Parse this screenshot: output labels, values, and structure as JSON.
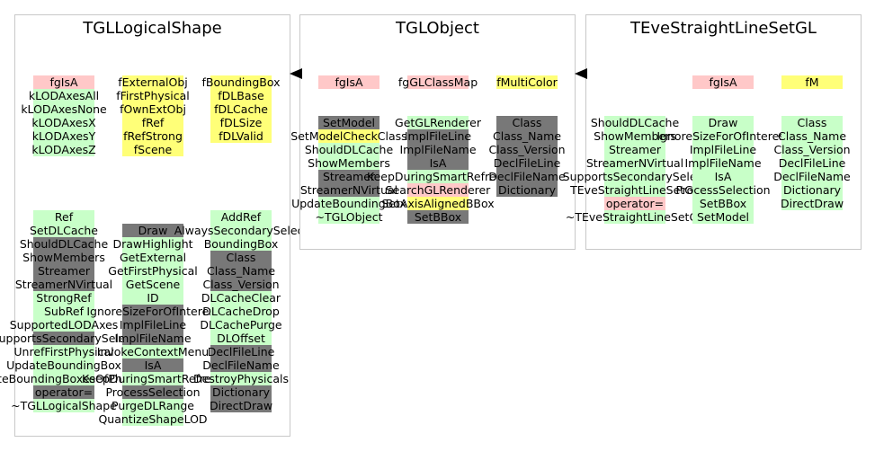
{
  "colors": {
    "pink": "#ffc8c8",
    "yellow": "#ffff78",
    "green": "#c8ffc8",
    "gray": "#787878",
    "white": "#ffffff",
    "border": "#c8c8c8"
  },
  "diagram": {
    "boxes": [
      {
        "id": "tgllogicalshape",
        "title": "TGLLogicalShape",
        "columns": [
          [
            {
              "text": "fgIsA",
              "c": "pink",
              "g": 0
            },
            {
              "text": "kLODAxesAll",
              "c": "green"
            },
            {
              "text": "kLODAxesNone",
              "c": "green"
            },
            {
              "text": "kLODAxesX",
              "c": "green"
            },
            {
              "text": "kLODAxesY",
              "c": "green"
            },
            {
              "text": "kLODAxesZ",
              "c": "green"
            },
            {
              "text": "Ref",
              "c": "green",
              "g": 4
            },
            {
              "text": "SetDLCache",
              "c": "green"
            },
            {
              "text": "ShouldDLCache",
              "c": "gray"
            },
            {
              "text": "ShowMembers",
              "c": "gray"
            },
            {
              "text": "Streamer",
              "c": "gray"
            },
            {
              "text": "StreamerNVirtual",
              "c": "gray"
            },
            {
              "text": "StrongRef",
              "c": "green"
            },
            {
              "text": "SubRef",
              "c": "green"
            },
            {
              "text": "SupportedLODAxes",
              "c": "green"
            },
            {
              "text": "SupportsSecondarySelect",
              "c": "gray"
            },
            {
              "text": "UnrefFirstPhysical",
              "c": "green"
            },
            {
              "text": "UpdateBoundingBox",
              "c": "green"
            },
            {
              "text": "UpdateBoundingBoxesOfPhysicals",
              "c": "green"
            },
            {
              "text": "operator=",
              "c": "gray"
            },
            {
              "text": "~TGLLogicalShape",
              "c": "green"
            }
          ],
          [
            {
              "text": "fExternalObj",
              "c": "yellow",
              "g": 0
            },
            {
              "text": "fFirstPhysical",
              "c": "yellow"
            },
            {
              "text": "fOwnExtObj",
              "c": "yellow"
            },
            {
              "text": "fRef",
              "c": "yellow"
            },
            {
              "text": "fRefStrong",
              "c": "yellow"
            },
            {
              "text": "fScene",
              "c": "yellow"
            },
            {
              "text": "Draw",
              "c": "gray",
              "g": 5
            },
            {
              "text": "DrawHighlight",
              "c": "green"
            },
            {
              "text": "GetExternal",
              "c": "green"
            },
            {
              "text": "GetFirstPhysical",
              "c": "green"
            },
            {
              "text": "GetScene",
              "c": "green"
            },
            {
              "text": "ID",
              "c": "green"
            },
            {
              "text": "IgnoreSizeForOfInterest",
              "c": "gray"
            },
            {
              "text": "ImplFileLine",
              "c": "gray"
            },
            {
              "text": "ImplFileName",
              "c": "gray"
            },
            {
              "text": "InvokeContextMenu",
              "c": "green"
            },
            {
              "text": "IsA",
              "c": "gray"
            },
            {
              "text": "KeepDuringSmartRefresh",
              "c": "green"
            },
            {
              "text": "ProcessSelection",
              "c": "gray"
            },
            {
              "text": "PurgeDLRange",
              "c": "green"
            },
            {
              "text": "QuantizeShapeLOD",
              "c": "green"
            }
          ],
          [
            {
              "text": "fBoundingBox",
              "c": "yellow",
              "g": 0
            },
            {
              "text": "fDLBase",
              "c": "yellow"
            },
            {
              "text": "fDLCache",
              "c": "yellow"
            },
            {
              "text": "fDLSize",
              "c": "yellow"
            },
            {
              "text": "fDLValid",
              "c": "yellow"
            },
            {
              "text": "AddRef",
              "c": "green",
              "g": 5
            },
            {
              "text": "AlwaysSecondarySelect",
              "c": "green"
            },
            {
              "text": "BoundingBox",
              "c": "green"
            },
            {
              "text": "Class",
              "c": "gray"
            },
            {
              "text": "Class_Name",
              "c": "gray"
            },
            {
              "text": "Class_Version",
              "c": "gray"
            },
            {
              "text": "DLCacheClear",
              "c": "green"
            },
            {
              "text": "DLCacheDrop",
              "c": "green"
            },
            {
              "text": "DLCachePurge",
              "c": "green"
            },
            {
              "text": "DLOffset",
              "c": "green"
            },
            {
              "text": "DeclFileLine",
              "c": "gray"
            },
            {
              "text": "DeclFileName",
              "c": "gray"
            },
            {
              "text": "DestroyPhysicals",
              "c": "green"
            },
            {
              "text": "Dictionary",
              "c": "gray"
            },
            {
              "text": "DirectDraw",
              "c": "gray"
            }
          ]
        ]
      },
      {
        "id": "tglobject",
        "title": "TGLObject",
        "columns": [
          [
            {
              "text": "fgIsA",
              "c": "pink",
              "g": 0
            },
            {
              "text": "SetModel",
              "c": "gray",
              "g": 2
            },
            {
              "text": "SetModelCheckClass",
              "c": "yellow"
            },
            {
              "text": "ShouldDLCache",
              "c": "green"
            },
            {
              "text": "ShowMembers",
              "c": "green"
            },
            {
              "text": "Streamer",
              "c": "gray"
            },
            {
              "text": "StreamerNVirtual",
              "c": "gray"
            },
            {
              "text": "UpdateBoundingBox",
              "c": "green"
            },
            {
              "text": "~TGLObject",
              "c": "green"
            }
          ],
          [
            {
              "text": "fgGLClassMap",
              "c": "pink",
              "g": 0
            },
            {
              "text": "GetGLRenderer",
              "c": "green",
              "g": 2
            },
            {
              "text": "ImplFileLine",
              "c": "gray"
            },
            {
              "text": "ImplFileName",
              "c": "gray"
            },
            {
              "text": "IsA",
              "c": "gray"
            },
            {
              "text": "KeepDuringSmartRefresh",
              "c": "green"
            },
            {
              "text": "SearchGLRenderer",
              "c": "pink"
            },
            {
              "text": "SetAxisAlignedBBox",
              "c": "yellow"
            },
            {
              "text": "SetBBox",
              "c": "gray"
            }
          ],
          [
            {
              "text": "fMultiColor",
              "c": "yellow",
              "g": 0
            },
            {
              "text": "Class",
              "c": "gray",
              "g": 2
            },
            {
              "text": "Class_Name",
              "c": "gray"
            },
            {
              "text": "Class_Version",
              "c": "gray"
            },
            {
              "text": "DeclFileLine",
              "c": "gray"
            },
            {
              "text": "DeclFileName",
              "c": "gray"
            },
            {
              "text": "Dictionary",
              "c": "gray"
            }
          ]
        ]
      },
      {
        "id": "tevestraightlinesetgl",
        "title": "TEveStraightLineSetGL",
        "columns": [
          [
            {
              "text": "ShouldDLCache",
              "c": "green",
              "g": 3
            },
            {
              "text": "ShowMembers",
              "c": "green"
            },
            {
              "text": "Streamer",
              "c": "green"
            },
            {
              "text": "StreamerNVirtual",
              "c": "green"
            },
            {
              "text": "SupportsSecondarySelect",
              "c": "green"
            },
            {
              "text": "TEveStraightLineSetGL",
              "c": "green"
            },
            {
              "text": "operator=",
              "c": "pink"
            },
            {
              "text": "~TEveStraightLineSetGL",
              "c": "green"
            }
          ],
          [
            {
              "text": "fgIsA",
              "c": "pink",
              "g": 0
            },
            {
              "text": "Draw",
              "c": "green",
              "g": 2
            },
            {
              "text": "IgnoreSizeForOfInterest",
              "c": "green"
            },
            {
              "text": "ImplFileLine",
              "c": "green"
            },
            {
              "text": "ImplFileName",
              "c": "green"
            },
            {
              "text": "IsA",
              "c": "green"
            },
            {
              "text": "ProcessSelection",
              "c": "green"
            },
            {
              "text": "SetBBox",
              "c": "green"
            },
            {
              "text": "SetModel",
              "c": "green"
            }
          ],
          [
            {
              "text": "fM",
              "c": "yellow",
              "g": 0
            },
            {
              "text": "Class",
              "c": "green",
              "g": 2
            },
            {
              "text": "Class_Name",
              "c": "green"
            },
            {
              "text": "Class_Version",
              "c": "green"
            },
            {
              "text": "DeclFileLine",
              "c": "green"
            },
            {
              "text": "DeclFileName",
              "c": "green"
            },
            {
              "text": "Dictionary",
              "c": "green"
            },
            {
              "text": "DirectDraw",
              "c": "green"
            }
          ]
        ]
      }
    ]
  }
}
